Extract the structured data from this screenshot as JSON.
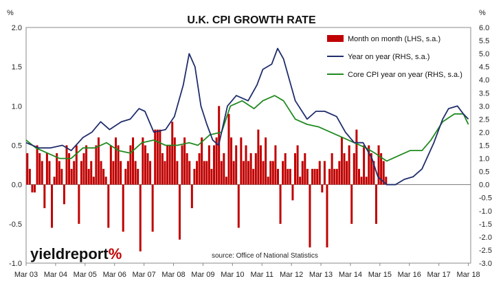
{
  "chart_data": {
    "type": "bar",
    "title": "U.K. CPI GROWTH RATE",
    "left_axis_unit": "%",
    "right_axis_unit": "%",
    "ylim_left": [
      -1.0,
      2.0
    ],
    "ylim_right": [
      -3.0,
      6.0
    ],
    "left_ticks": [
      "-1.0",
      "-0.5",
      "0.0",
      "0.5",
      "1.0",
      "1.5",
      "2.0"
    ],
    "right_ticks": [
      "-3.0",
      "-2.5",
      "-2.0",
      "-1.5",
      "-1.0",
      "-0.5",
      "0.0",
      "0.5",
      "1.0",
      "1.5",
      "2.0",
      "2.5",
      "3.0",
      "3.5",
      "4.0",
      "4.5",
      "5.0",
      "5.5",
      "6.0"
    ],
    "x_ticks": [
      "Mar 03",
      "Mar 04",
      "Mar 05",
      "Mar 06",
      "Mar 07",
      "Mar 08",
      "Mar 09",
      "Mar 10",
      "Mar 11",
      "Mar 12",
      "Mar 13",
      "Mar 14",
      "Mar 15",
      "Mar 16",
      "Mar 17",
      "Mar 18"
    ],
    "source": "source: Office of National Statistics",
    "logo_text_1": "yieldreport",
    "logo_text_2": "%",
    "colors": {
      "bars": "#c00000",
      "yoy": "#1f2d6b",
      "core": "#1e8a1e"
    },
    "series": [
      {
        "name": "Month on month (LHS, s.a.)",
        "axis": "left",
        "kind": "bar",
        "start": "Mar 03",
        "values": [
          0.4,
          0.2,
          -0.1,
          -0.1,
          0.5,
          0.4,
          0.3,
          -0.3,
          0.4,
          0.3,
          -0.55,
          0.1,
          0.4,
          0.3,
          0.2,
          -0.25,
          0.5,
          0.4,
          0.2,
          0.3,
          0.5,
          -0.5,
          0.3,
          0.4,
          0.5,
          0.2,
          0.3,
          0.1,
          0.5,
          0.6,
          0.3,
          0.2,
          0.1,
          -0.55,
          0.5,
          0.3,
          0.6,
          0.5,
          0.3,
          -0.6,
          0.2,
          0.3,
          0.5,
          0.6,
          0.3,
          0.2,
          -0.85,
          0.6,
          0.5,
          0.4,
          0.3,
          -0.6,
          0.7,
          0.7,
          0.7,
          0.4,
          0.3,
          0.5,
          0.5,
          0.8,
          0.6,
          0.3,
          -0.7,
          0.5,
          0.6,
          0.4,
          0.3,
          -0.3,
          0.2,
          0.3,
          0.4,
          0.6,
          0.3,
          0.3,
          0.5,
          0.2,
          0.5,
          0.6,
          1.0,
          0.3,
          0.4,
          0.1,
          0.9,
          0.6,
          0.3,
          0.5,
          -0.55,
          0.6,
          0.3,
          0.5,
          0.3,
          0.4,
          0.2,
          0.4,
          0.7,
          0.5,
          0.3,
          0.6,
          0.1,
          0.3,
          0.3,
          0.5,
          0.2,
          -0.5,
          0.3,
          0.4,
          0.2,
          0.2,
          -0.2,
          0.4,
          0.5,
          0.1,
          0.3,
          0.4,
          0.2,
          -0.8,
          0.2,
          0.2,
          0.2,
          0.3,
          -0.1,
          0.3,
          -0.8,
          0.2,
          0.4,
          0.2,
          0.2,
          0.3,
          0.6,
          0.4,
          0.3,
          0.5,
          -0.5,
          0.4,
          0.7,
          0.2,
          0.1,
          0.5,
          0.1,
          0.5,
          0.4,
          0.3,
          -0.5,
          0.5,
          0.4,
          0.3,
          0.1
        ]
      },
      {
        "name": "Year on year (RHS, s.a.)",
        "axis": "right",
        "kind": "line",
        "x": [
          2003.17,
          2003.6,
          2004.0,
          2004.4,
          2004.7,
          2005.1,
          2005.4,
          2005.7,
          2006.0,
          2006.4,
          2006.7,
          2007.0,
          2007.2,
          2007.5,
          2007.9,
          2008.2,
          2008.5,
          2008.7,
          2008.9,
          2009.1,
          2009.3,
          2009.5,
          2009.7,
          2010.0,
          2010.3,
          2010.7,
          2011.0,
          2011.2,
          2011.5,
          2011.7,
          2011.9,
          2012.3,
          2012.7,
          2013.0,
          2013.3,
          2013.7,
          2014.0,
          2014.3,
          2014.6,
          2014.9,
          2015.1,
          2015.4,
          2015.7,
          2016.0,
          2016.3,
          2016.6,
          2017.0,
          2017.3,
          2017.5,
          2017.8,
          2018.0,
          2018.17
        ],
        "values": [
          1.6,
          1.4,
          1.4,
          1.5,
          1.3,
          1.8,
          2.0,
          2.4,
          2.1,
          2.4,
          2.5,
          2.9,
          2.8,
          2.0,
          2.1,
          2.6,
          3.8,
          5.0,
          4.5,
          3.0,
          2.3,
          1.7,
          1.5,
          3.0,
          3.4,
          3.2,
          3.8,
          4.4,
          4.6,
          5.2,
          4.8,
          3.2,
          2.5,
          2.8,
          2.8,
          2.6,
          2.0,
          1.6,
          1.6,
          1.0,
          0.3,
          0.0,
          0.0,
          0.2,
          0.3,
          0.6,
          1.6,
          2.5,
          2.9,
          3.0,
          2.7,
          2.5
        ]
      },
      {
        "name": "Core CPI year on year (RHS, s.a.)",
        "axis": "right",
        "kind": "line",
        "x": [
          2003.17,
          2003.5,
          2003.9,
          2004.3,
          2004.7,
          2005.1,
          2005.5,
          2005.9,
          2006.3,
          2006.7,
          2007.1,
          2007.5,
          2007.9,
          2008.3,
          2008.7,
          2009.0,
          2009.4,
          2009.8,
          2010.1,
          2010.5,
          2010.9,
          2011.2,
          2011.6,
          2011.9,
          2012.3,
          2012.7,
          2013.1,
          2013.5,
          2013.9,
          2014.3,
          2014.7,
          2015.0,
          2015.4,
          2015.8,
          2016.2,
          2016.6,
          2016.9,
          2017.3,
          2017.7,
          2018.0,
          2018.17
        ],
        "values": [
          1.7,
          1.4,
          1.2,
          1.0,
          1.0,
          1.4,
          1.4,
          1.6,
          1.3,
          1.2,
          1.6,
          1.7,
          1.5,
          1.5,
          1.6,
          1.5,
          1.9,
          2.0,
          3.0,
          3.2,
          2.9,
          3.2,
          3.4,
          3.2,
          2.5,
          2.3,
          2.2,
          2.0,
          1.8,
          1.6,
          1.4,
          1.2,
          0.9,
          1.1,
          1.3,
          1.3,
          1.7,
          2.4,
          2.7,
          2.7,
          2.3
        ]
      }
    ]
  }
}
